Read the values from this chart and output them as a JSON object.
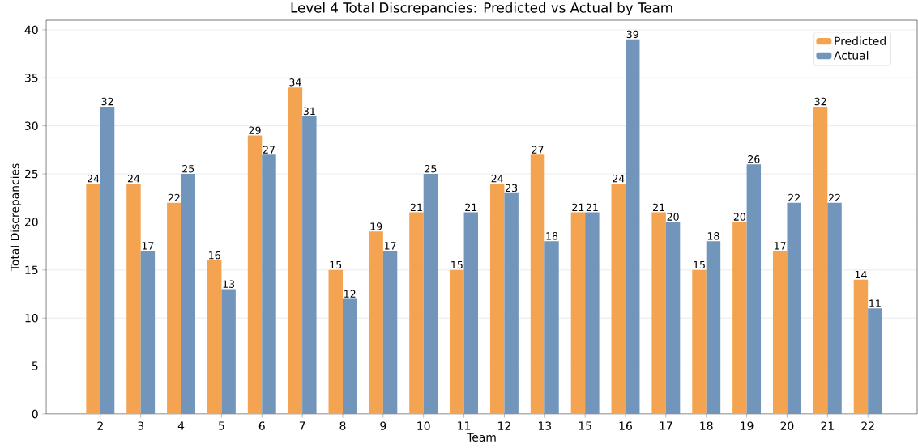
{
  "chart_data": {
    "type": "bar",
    "title": "Level 4 Total Discrepancies: Predicted vs Actual by Team",
    "xlabel": "Team",
    "ylabel": "Total Discrepancies",
    "categories": [
      "2",
      "3",
      "4",
      "5",
      "6",
      "7",
      "8",
      "9",
      "10",
      "11",
      "12",
      "13",
      "15",
      "16",
      "17",
      "18",
      "19",
      "20",
      "21",
      "22"
    ],
    "series": [
      {
        "name": "Predicted",
        "color": "#f4a350",
        "values": [
          24,
          24,
          22,
          16,
          29,
          34,
          15,
          19,
          21,
          15,
          24,
          27,
          21,
          24,
          21,
          15,
          20,
          17,
          32,
          14
        ]
      },
      {
        "name": "Actual",
        "color": "#7195bb",
        "values": [
          32,
          17,
          25,
          13,
          27,
          31,
          12,
          17,
          25,
          21,
          23,
          18,
          21,
          39,
          20,
          18,
          26,
          22,
          22,
          11
        ]
      }
    ],
    "ylim": [
      0,
      41
    ],
    "yticks": [
      0,
      5,
      10,
      15,
      20,
      25,
      30,
      35,
      40
    ],
    "grid": "y",
    "legend": "top right",
    "data_labels": true
  }
}
